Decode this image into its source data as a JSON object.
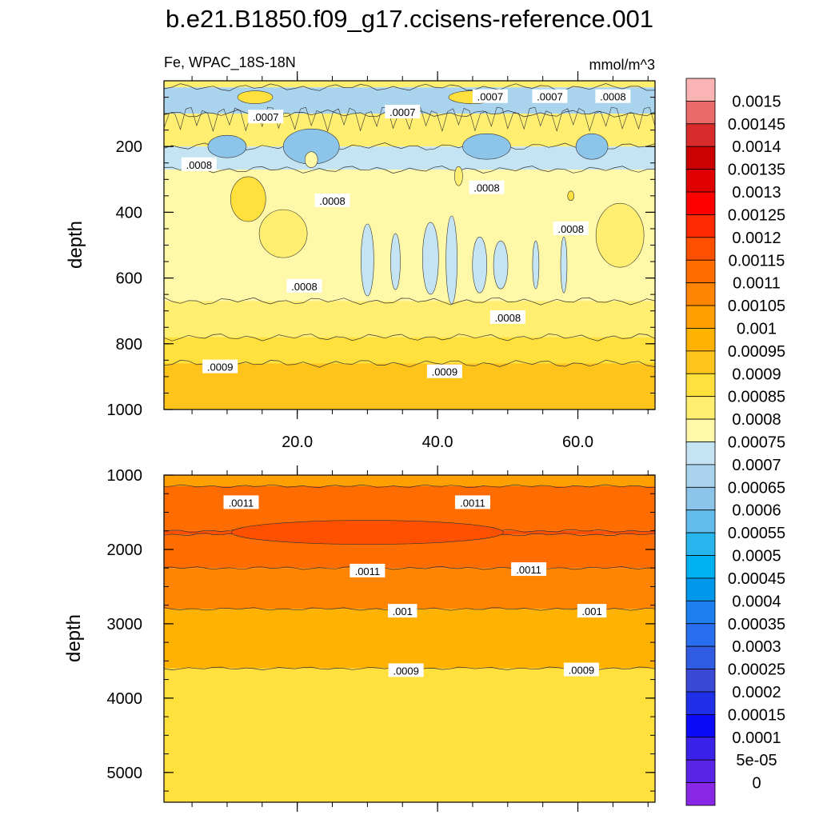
{
  "title": "b.e21.B1850.f09_g17.ccisens-reference.001",
  "left_string": "Fe, WPAC_18S-18N",
  "right_string": "mmol/m^3",
  "chart_data": [
    {
      "type": "heatmap",
      "panel": "upper",
      "ylabel": "depth",
      "xlim": [
        1,
        71
      ],
      "ylim": [
        1000,
        0
      ],
      "x_ticks": [
        "20.0",
        "40.0",
        "60.0"
      ],
      "x_tick_values": [
        20,
        40,
        60
      ],
      "y_ticks": [
        "200",
        "400",
        "600",
        "800",
        "1000"
      ],
      "y_tick_values": [
        200,
        400,
        600,
        800,
        1000
      ],
      "bands": [
        {
          "top": 0,
          "bottom": 20,
          "value": 0.0008
        },
        {
          "top": 20,
          "bottom": 100,
          "value": 0.00065
        },
        {
          "top": 100,
          "bottom": 200,
          "value": 0.0008
        },
        {
          "top": 200,
          "bottom": 270,
          "value": 0.0007
        },
        {
          "top": 270,
          "bottom": 670,
          "value": 0.00075
        },
        {
          "top": 670,
          "bottom": 780,
          "value": 0.0008
        },
        {
          "top": 780,
          "bottom": 860,
          "value": 0.00085
        },
        {
          "top": 860,
          "bottom": 1000,
          "value": 0.0009
        }
      ],
      "contour_labels": [
        {
          "text": ".0007",
          "x": 15.5,
          "y": 110
        },
        {
          "text": ".0007",
          "x": 35,
          "y": 95
        },
        {
          "text": ".0007",
          "x": 47.5,
          "y": 48
        },
        {
          "text": ".0007",
          "x": 56,
          "y": 48
        },
        {
          "text": ".0008",
          "x": 65,
          "y": 48
        },
        {
          "text": ".0008",
          "x": 6,
          "y": 255
        },
        {
          "text": ".0008",
          "x": 25,
          "y": 365
        },
        {
          "text": ".0008",
          "x": 47,
          "y": 325
        },
        {
          "text": ".0008",
          "x": 59,
          "y": 450
        },
        {
          "text": ".0008",
          "x": 21,
          "y": 625
        },
        {
          "text": ".0008",
          "x": 50,
          "y": 720
        },
        {
          "text": ".0009",
          "x": 9,
          "y": 870
        },
        {
          "text": ".0009",
          "x": 41,
          "y": 885
        }
      ]
    },
    {
      "type": "heatmap",
      "panel": "lower",
      "ylabel": "depth",
      "xlim": [
        1,
        71
      ],
      "ylim": [
        5400,
        1000
      ],
      "y_ticks": [
        "1000",
        "2000",
        "3000",
        "4000",
        "5000"
      ],
      "y_tick_values": [
        1000,
        2000,
        3000,
        4000,
        5000
      ],
      "bands": [
        {
          "top": 1000,
          "bottom": 1150,
          "value": 0.001
        },
        {
          "top": 1150,
          "bottom": 1750,
          "value": 0.0011
        },
        {
          "top": 1750,
          "bottom": 1800,
          "value": 0.00115
        },
        {
          "top": 1800,
          "bottom": 2250,
          "value": 0.0011
        },
        {
          "top": 2250,
          "bottom": 2800,
          "value": 0.00105
        },
        {
          "top": 2800,
          "bottom": 3600,
          "value": 0.00095
        },
        {
          "top": 3600,
          "bottom": 5400,
          "value": 0.00085
        }
      ],
      "contour_labels": [
        {
          "text": ".0011",
          "x": 12,
          "y": 1370
        },
        {
          "text": ".0011",
          "x": 45,
          "y": 1370
        },
        {
          "text": ".0011",
          "x": 30,
          "y": 2290
        },
        {
          "text": ".0011",
          "x": 53,
          "y": 2270
        },
        {
          "text": ".001",
          "x": 35,
          "y": 2830
        },
        {
          "text": ".001",
          "x": 62,
          "y": 2830
        },
        {
          "text": ".0009",
          "x": 35.5,
          "y": 3630
        },
        {
          "text": ".0009",
          "x": 60.5,
          "y": 3620
        }
      ]
    }
  ],
  "colorbar": {
    "labels": [
      "0.0015",
      "0.00145",
      "0.0014",
      "0.00135",
      "0.0013",
      "0.00125",
      "0.0012",
      "0.00115",
      "0.0011",
      "0.00105",
      "0.001",
      "0.00095",
      "0.0009",
      "0.00085",
      "0.0008",
      "0.00075",
      "0.0007",
      "0.00065",
      "0.0006",
      "0.00055",
      "0.0005",
      "0.00045",
      "0.0004",
      "0.00035",
      "0.0003",
      "0.00025",
      "0.0002",
      "0.00015",
      "0.0001",
      "5e-05",
      "0"
    ],
    "colors": [
      "#fbb4b4",
      "#ea6a6a",
      "#d92b2b",
      "#cc0000",
      "#e00000",
      "#ff0000",
      "#ff2a00",
      "#ff5000",
      "#ff6d00",
      "#ff8400",
      "#ffa000",
      "#ffb200",
      "#ffc41c",
      "#ffe03c",
      "#ffee70",
      "#fff8a8",
      "#c4e4f4",
      "#aad4ee",
      "#8cc4ea",
      "#62bcec",
      "#28b4ec",
      "#00b0f0",
      "#0098ea",
      "#1e80f0",
      "#2a6ef0",
      "#2f5ce2",
      "#3a4ad6",
      "#2030e8",
      "#0a0af8",
      "#3a22ea",
      "#5a24e8",
      "#8828e6"
    ]
  }
}
